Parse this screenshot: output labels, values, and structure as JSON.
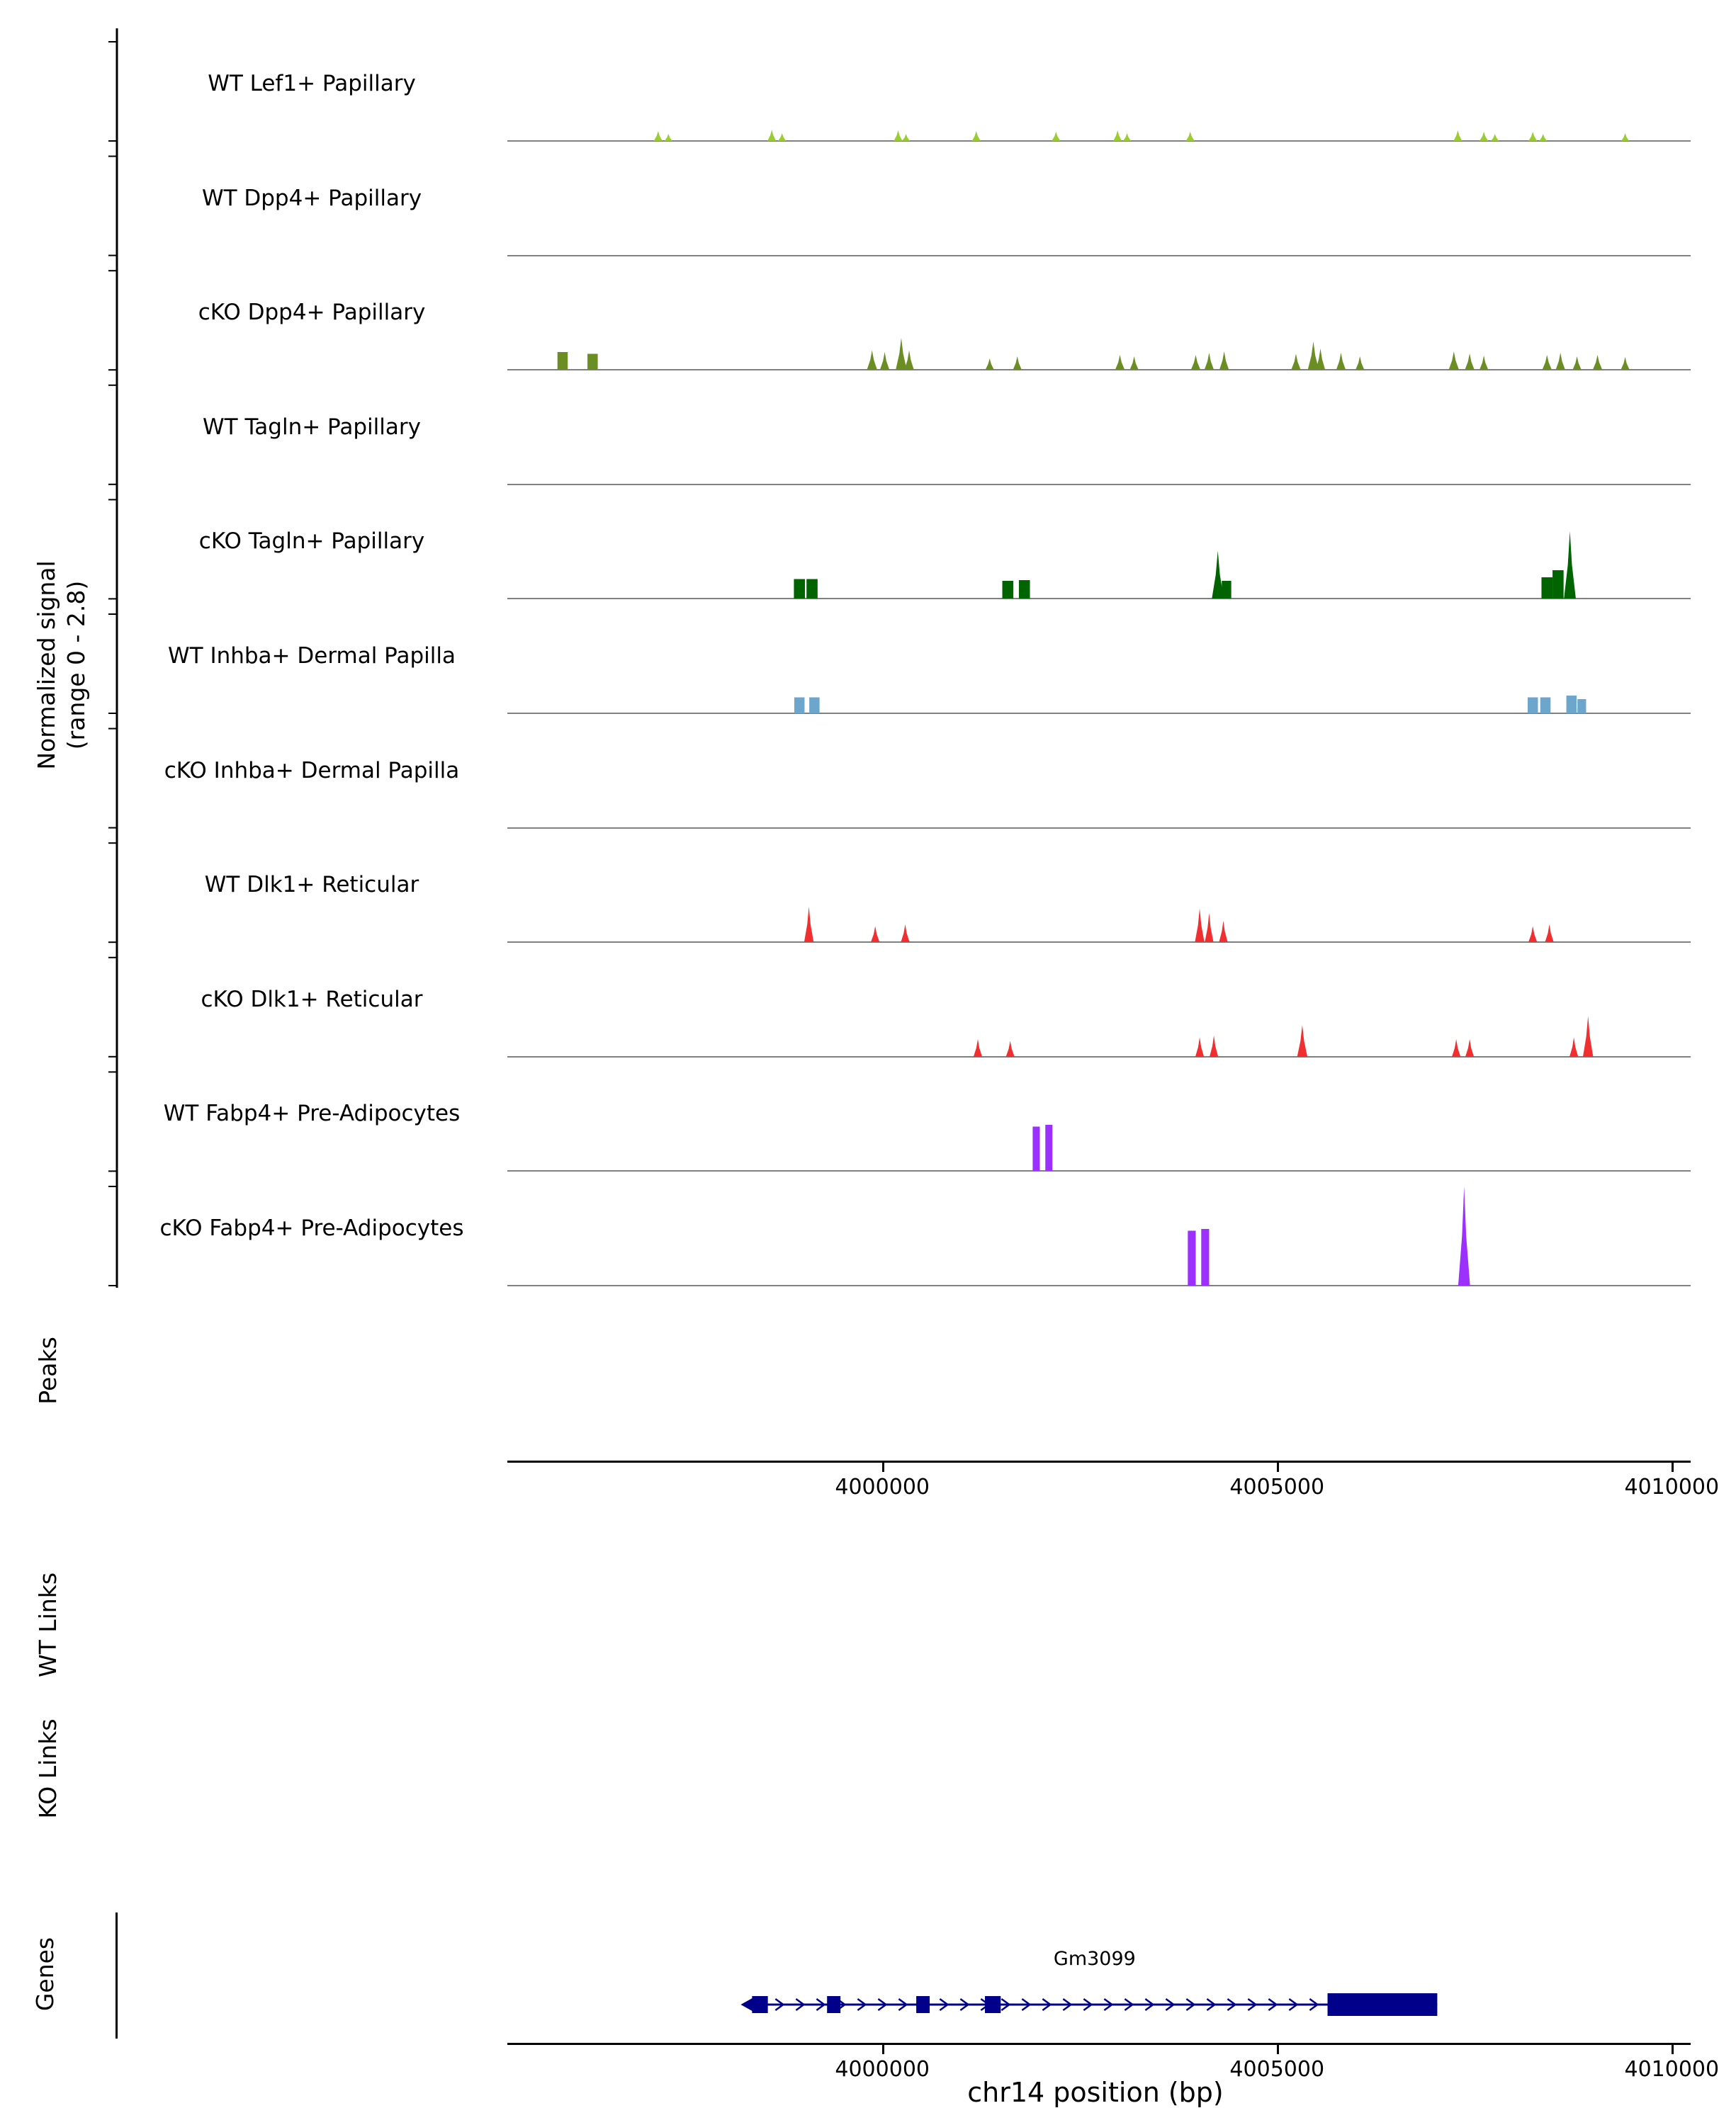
{
  "figure": {
    "xlabel": "chr14 position (bp)",
    "ylabel_line1": "Normalized signal",
    "ylabel_line2": "(range 0 - 2.8)",
    "background": "#ffffff"
  },
  "sections": {
    "peaks_label": "Peaks",
    "wt_links_label": "WT Links",
    "ko_links_label": "KO Links",
    "genes_label": "Genes"
  },
  "chart_data": {
    "type": "area",
    "title": "",
    "xlabel": "chr14 position (bp)",
    "ylabel": "Normalized signal (range 0 - 2.8)",
    "xlim": [
      3995250,
      4010150
    ],
    "ylim": [
      0,
      2.8
    ],
    "grid": false,
    "baseline_color": "#808080",
    "x_ticks": [
      {
        "pos": 4000000,
        "label": "4000000"
      },
      {
        "pos": 4005000,
        "label": "4005000"
      },
      {
        "pos": 4010000,
        "label": "4010000"
      }
    ],
    "tracks": [
      {
        "label": "WT Lef1+ Papillary",
        "color": "#9ACD32",
        "peaks": [
          {
            "pos": 3997160,
            "w": 110,
            "h": 0.28,
            "shape": "spike"
          },
          {
            "pos": 3997290,
            "w": 100,
            "h": 0.2,
            "shape": "spike"
          },
          {
            "pos": 3998600,
            "w": 110,
            "h": 0.32,
            "shape": "spike"
          },
          {
            "pos": 3998730,
            "w": 100,
            "h": 0.22,
            "shape": "spike"
          },
          {
            "pos": 4000200,
            "w": 110,
            "h": 0.3,
            "shape": "spike"
          },
          {
            "pos": 4000300,
            "w": 100,
            "h": 0.2,
            "shape": "spike"
          },
          {
            "pos": 4001190,
            "w": 110,
            "h": 0.28,
            "shape": "spike"
          },
          {
            "pos": 4002200,
            "w": 110,
            "h": 0.26,
            "shape": "spike"
          },
          {
            "pos": 4002980,
            "w": 110,
            "h": 0.3,
            "shape": "spike"
          },
          {
            "pos": 4003100,
            "w": 100,
            "h": 0.22,
            "shape": "spike"
          },
          {
            "pos": 4003900,
            "w": 110,
            "h": 0.26,
            "shape": "spike"
          },
          {
            "pos": 4007290,
            "w": 110,
            "h": 0.3,
            "shape": "spike"
          },
          {
            "pos": 4007620,
            "w": 110,
            "h": 0.26,
            "shape": "spike"
          },
          {
            "pos": 4007760,
            "w": 100,
            "h": 0.2,
            "shape": "spike"
          },
          {
            "pos": 4008240,
            "w": 110,
            "h": 0.26,
            "shape": "spike"
          },
          {
            "pos": 4008370,
            "w": 100,
            "h": 0.2,
            "shape": "spike"
          },
          {
            "pos": 4009410,
            "w": 100,
            "h": 0.22,
            "shape": "spike"
          }
        ]
      },
      {
        "label": "WT Dpp4+ Papillary",
        "color": "#6B8E23",
        "peaks": []
      },
      {
        "label": "cKO Dpp4+ Papillary",
        "color": "#6B8E23",
        "peaks": [
          {
            "pos": 3995950,
            "w": 130,
            "h": 0.5,
            "shape": "box"
          },
          {
            "pos": 3996330,
            "w": 130,
            "h": 0.45,
            "shape": "box"
          },
          {
            "pos": 3999870,
            "w": 130,
            "h": 0.55,
            "shape": "spike"
          },
          {
            "pos": 4000030,
            "w": 120,
            "h": 0.5,
            "shape": "spike"
          },
          {
            "pos": 4000240,
            "w": 140,
            "h": 0.9,
            "shape": "spike"
          },
          {
            "pos": 4000340,
            "w": 120,
            "h": 0.55,
            "shape": "spike"
          },
          {
            "pos": 4001360,
            "w": 110,
            "h": 0.32,
            "shape": "spike"
          },
          {
            "pos": 4001710,
            "w": 110,
            "h": 0.38,
            "shape": "spike"
          },
          {
            "pos": 4003010,
            "w": 120,
            "h": 0.42,
            "shape": "spike"
          },
          {
            "pos": 4003190,
            "w": 110,
            "h": 0.38,
            "shape": "spike"
          },
          {
            "pos": 4003970,
            "w": 120,
            "h": 0.42,
            "shape": "spike"
          },
          {
            "pos": 4004140,
            "w": 120,
            "h": 0.48,
            "shape": "spike"
          },
          {
            "pos": 4004330,
            "w": 120,
            "h": 0.52,
            "shape": "spike"
          },
          {
            "pos": 4005240,
            "w": 120,
            "h": 0.45,
            "shape": "spike"
          },
          {
            "pos": 4005460,
            "w": 140,
            "h": 0.8,
            "shape": "spike"
          },
          {
            "pos": 4005550,
            "w": 120,
            "h": 0.6,
            "shape": "spike"
          },
          {
            "pos": 4005810,
            "w": 120,
            "h": 0.48,
            "shape": "spike"
          },
          {
            "pos": 4006050,
            "w": 110,
            "h": 0.38,
            "shape": "spike"
          },
          {
            "pos": 4007240,
            "w": 130,
            "h": 0.52,
            "shape": "spike"
          },
          {
            "pos": 4007440,
            "w": 120,
            "h": 0.46,
            "shape": "spike"
          },
          {
            "pos": 4007620,
            "w": 110,
            "h": 0.4,
            "shape": "spike"
          },
          {
            "pos": 4008420,
            "w": 120,
            "h": 0.42,
            "shape": "spike"
          },
          {
            "pos": 4008590,
            "w": 120,
            "h": 0.48,
            "shape": "spike"
          },
          {
            "pos": 4008800,
            "w": 110,
            "h": 0.38,
            "shape": "spike"
          },
          {
            "pos": 4009060,
            "w": 120,
            "h": 0.42,
            "shape": "spike"
          },
          {
            "pos": 4009410,
            "w": 110,
            "h": 0.36,
            "shape": "spike"
          }
        ]
      },
      {
        "label": "WT Tagln+ Papillary",
        "color": "#006400",
        "peaks": []
      },
      {
        "label": "cKO Tagln+ Papillary",
        "color": "#006400",
        "peaks": [
          {
            "pos": 3998950,
            "w": 140,
            "h": 0.55,
            "shape": "box"
          },
          {
            "pos": 3999110,
            "w": 140,
            "h": 0.55,
            "shape": "box"
          },
          {
            "pos": 4001590,
            "w": 140,
            "h": 0.5,
            "shape": "box"
          },
          {
            "pos": 4001800,
            "w": 140,
            "h": 0.52,
            "shape": "box"
          },
          {
            "pos": 4004250,
            "w": 150,
            "h": 1.35,
            "shape": "spike"
          },
          {
            "pos": 4004360,
            "w": 120,
            "h": 0.5,
            "shape": "box"
          },
          {
            "pos": 4008420,
            "w": 140,
            "h": 0.6,
            "shape": "box"
          },
          {
            "pos": 4008560,
            "w": 140,
            "h": 0.8,
            "shape": "box"
          },
          {
            "pos": 4008710,
            "w": 150,
            "h": 1.9,
            "shape": "spike"
          }
        ]
      },
      {
        "label": "WT Inhba+ Dermal Papilla",
        "color": "#6CA6CD",
        "peaks": [
          {
            "pos": 3998950,
            "w": 130,
            "h": 0.45,
            "shape": "box"
          },
          {
            "pos": 3999140,
            "w": 130,
            "h": 0.45,
            "shape": "box"
          },
          {
            "pos": 4008240,
            "w": 130,
            "h": 0.45,
            "shape": "box"
          },
          {
            "pos": 4008400,
            "w": 130,
            "h": 0.45,
            "shape": "box"
          },
          {
            "pos": 4008730,
            "w": 130,
            "h": 0.5,
            "shape": "box"
          },
          {
            "pos": 4008860,
            "w": 110,
            "h": 0.4,
            "shape": "box"
          }
        ]
      },
      {
        "label": "cKO Inhba+ Dermal Papilla",
        "color": "#6CA6CD",
        "peaks": []
      },
      {
        "label": "WT Dlk1+ Reticular",
        "color": "#F03030",
        "peaks": [
          {
            "pos": 3999070,
            "w": 120,
            "h": 1.0,
            "shape": "spike"
          },
          {
            "pos": 3999910,
            "w": 110,
            "h": 0.45,
            "shape": "spike"
          },
          {
            "pos": 4000290,
            "w": 110,
            "h": 0.5,
            "shape": "spike"
          },
          {
            "pos": 4004020,
            "w": 120,
            "h": 0.95,
            "shape": "spike"
          },
          {
            "pos": 4004140,
            "w": 110,
            "h": 0.82,
            "shape": "spike"
          },
          {
            "pos": 4004320,
            "w": 110,
            "h": 0.6,
            "shape": "spike"
          },
          {
            "pos": 4008240,
            "w": 110,
            "h": 0.45,
            "shape": "spike"
          },
          {
            "pos": 4008450,
            "w": 110,
            "h": 0.5,
            "shape": "spike"
          }
        ]
      },
      {
        "label": "cKO Dlk1+ Reticular",
        "color": "#F03030",
        "peaks": [
          {
            "pos": 4001210,
            "w": 110,
            "h": 0.5,
            "shape": "spike"
          },
          {
            "pos": 4001620,
            "w": 110,
            "h": 0.45,
            "shape": "spike"
          },
          {
            "pos": 4004020,
            "w": 110,
            "h": 0.55,
            "shape": "spike"
          },
          {
            "pos": 4004200,
            "w": 110,
            "h": 0.6,
            "shape": "spike"
          },
          {
            "pos": 4005320,
            "w": 130,
            "h": 0.9,
            "shape": "spike"
          },
          {
            "pos": 4007270,
            "w": 110,
            "h": 0.5,
            "shape": "spike"
          },
          {
            "pos": 4007440,
            "w": 110,
            "h": 0.5,
            "shape": "spike"
          },
          {
            "pos": 4008760,
            "w": 110,
            "h": 0.55,
            "shape": "spike"
          },
          {
            "pos": 4008940,
            "w": 130,
            "h": 1.15,
            "shape": "spike"
          }
        ]
      },
      {
        "label": "WT Fabp4+ Pre-Adipocytes",
        "color": "#9B30FF",
        "peaks": [
          {
            "pos": 4001950,
            "w": 90,
            "h": 1.25,
            "shape": "box"
          },
          {
            "pos": 4002110,
            "w": 90,
            "h": 1.3,
            "shape": "box"
          }
        ]
      },
      {
        "label": "cKO Fabp4+ Pre-Adipocytes",
        "color": "#9B30FF",
        "peaks": [
          {
            "pos": 4003920,
            "w": 100,
            "h": 1.55,
            "shape": "box"
          },
          {
            "pos": 4004090,
            "w": 100,
            "h": 1.6,
            "shape": "box"
          },
          {
            "pos": 4007370,
            "w": 150,
            "h": 2.8,
            "shape": "spike"
          }
        ]
      }
    ],
    "peaks_track": [],
    "links": {
      "wt": [],
      "ko": []
    },
    "genes": [
      {
        "name": "Gm3099",
        "chrom": "chr14",
        "start": 3998350,
        "end": 4007030,
        "strand": "+",
        "color": "#00008B",
        "exons": [
          [
            3998350,
            3998550
          ],
          [
            3999300,
            3999470
          ],
          [
            4000430,
            4000600
          ],
          [
            4001300,
            4001500
          ]
        ],
        "thick": [
          4005640,
          4007030
        ]
      }
    ]
  }
}
